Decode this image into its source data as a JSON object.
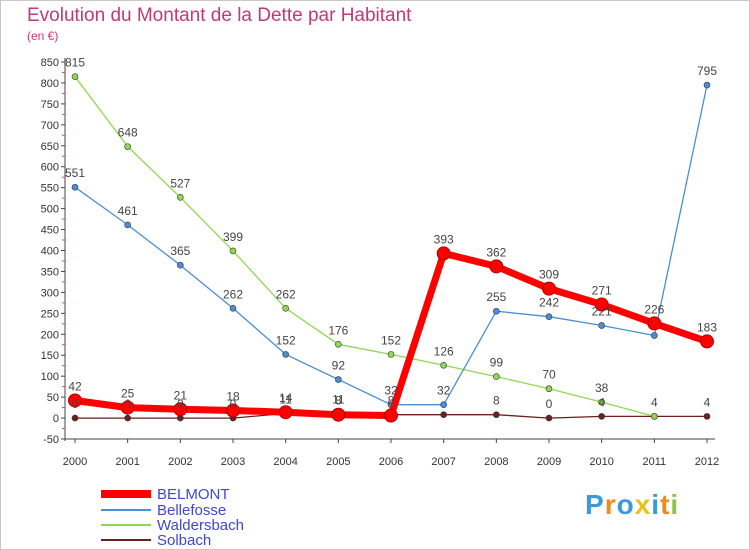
{
  "title": "Evolution du Montant de la Dette par Habitant",
  "subtitle": "(en €)",
  "chart_data": {
    "type": "line",
    "title": "Evolution du Montant de la Dette par Habitant",
    "ylabel": "(en €)",
    "xlabel": "",
    "x": [
      "2000",
      "2001",
      "2002",
      "2003",
      "2004",
      "2005",
      "2006",
      "2007",
      "2008",
      "2009",
      "2010",
      "2011",
      "2012"
    ],
    "ylim": [
      -50,
      850
    ],
    "yticks": [
      -50,
      0,
      50,
      100,
      150,
      200,
      250,
      300,
      350,
      400,
      450,
      500,
      550,
      600,
      650,
      700,
      750,
      800,
      850
    ],
    "grid": false,
    "legend_position": "bottom-left",
    "series": [
      {
        "name": "BELMONT",
        "color": "#ff0000",
        "values": [
          42,
          25,
          21,
          18,
          14,
          8,
          6,
          393,
          362,
          309,
          271,
          226,
          183
        ],
        "labels": [
          "42",
          "25",
          "21",
          "18",
          "14",
          "8",
          "",
          "393",
          "362",
          "309",
          "271",
          "226",
          "183"
        ]
      },
      {
        "name": "Bellefosse",
        "color": "#4a8fd4",
        "values": [
          551,
          461,
          365,
          262,
          152,
          92,
          32,
          32,
          255,
          242,
          221,
          197,
          795
        ],
        "labels": [
          "551",
          "461",
          "365",
          "262",
          "152",
          "92",
          "32",
          "32",
          "255",
          "242",
          "221",
          "",
          "795"
        ]
      },
      {
        "name": "Waldersbach",
        "color": "#8fd94f",
        "values": [
          815,
          648,
          527,
          399,
          262,
          176,
          152,
          126,
          99,
          70,
          38,
          4,
          null
        ],
        "labels": [
          "815",
          "648",
          "527",
          "399",
          "262",
          "176",
          "152",
          "126",
          "99",
          "70",
          "38",
          "",
          ""
        ]
      },
      {
        "name": "Solbach",
        "color": "#6b1f1f",
        "values": [
          0,
          0,
          0,
          0,
          11,
          11,
          8,
          8,
          8,
          0,
          4,
          4,
          4
        ],
        "labels": [
          "0",
          "0",
          "0",
          "0",
          "11",
          "11",
          "8",
          "",
          "8",
          "0",
          "4",
          "4",
          "4"
        ]
      }
    ]
  },
  "legend": [
    {
      "label": "BELMONT"
    },
    {
      "label": "Bellefosse"
    },
    {
      "label": "Waldersbach"
    },
    {
      "label": "Solbach"
    }
  ],
  "logo": {
    "text": "Proxiti",
    "letters": [
      "P",
      "r",
      "o",
      "x",
      "i",
      "t",
      "i"
    ],
    "colors": [
      "#3a9ad9",
      "#f08a1c",
      "#3a9ad9",
      "#e8c21a",
      "#3a9ad9",
      "#f08a1c",
      "#8cc63f"
    ]
  }
}
